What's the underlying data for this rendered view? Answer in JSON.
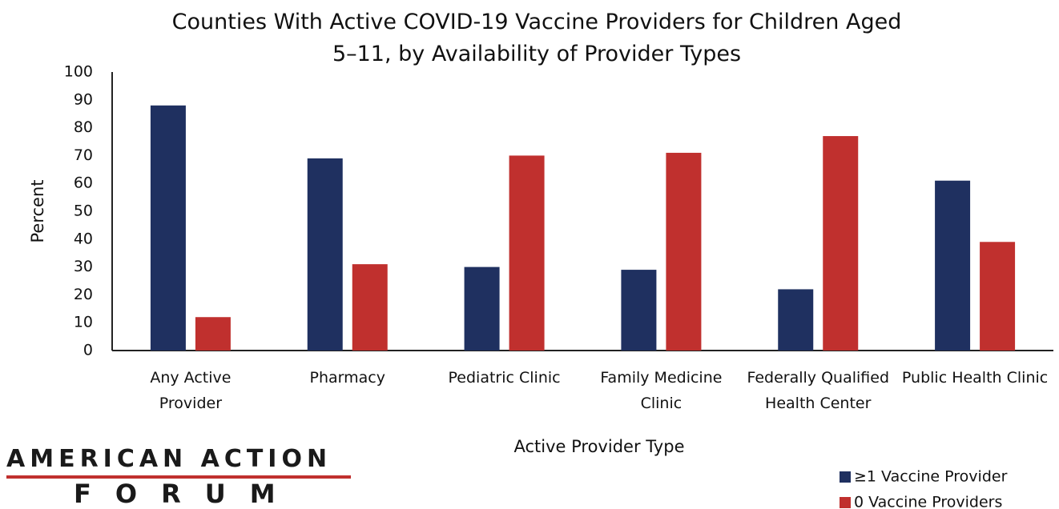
{
  "chart_data": {
    "type": "bar",
    "title": "Counties With Active COVID-19 Vaccine Providers for Children Aged 5–11, by Availability of Provider Types",
    "x_label": "Active Provider Type",
    "y_label": "Percent",
    "categories": [
      "Any Active Provider",
      "Pharmacy",
      "Pediatric Clinic",
      "Family Medicine Clinic",
      "Federally Qualified Health Center",
      "Public Health Clinic"
    ],
    "series": [
      {
        "name": "≥1 Vaccine Provider",
        "color": "#1f3060",
        "values": [
          88,
          69,
          30,
          29,
          22,
          61
        ]
      },
      {
        "name": "0 Vaccine Providers",
        "color": "#c0302e",
        "values": [
          12,
          31,
          70,
          71,
          77,
          39
        ]
      }
    ],
    "ylim": [
      0,
      100
    ],
    "yticks": [
      0,
      10,
      20,
      30,
      40,
      50,
      60,
      70,
      80,
      90,
      100
    ],
    "grid": false,
    "legend": "bottom-right"
  },
  "logo": {
    "line1": "AMERICAN ACTION",
    "line2": "FORUM"
  }
}
